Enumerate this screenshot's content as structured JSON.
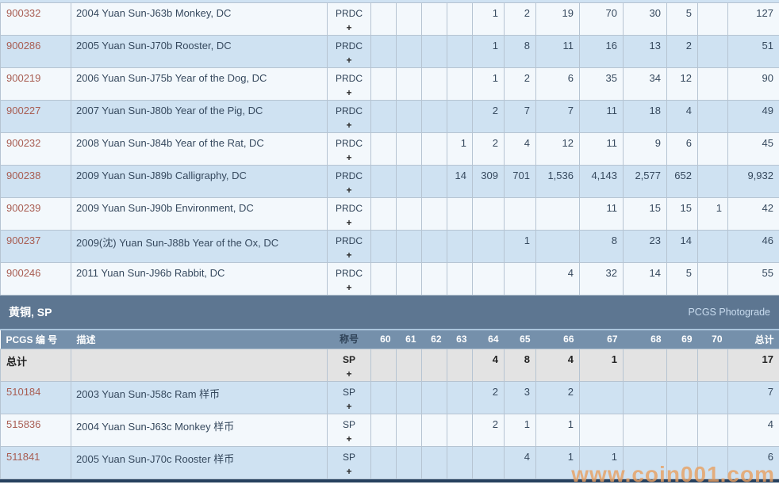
{
  "grade_labels": [
    "60",
    "61",
    "62",
    "63",
    "64",
    "65",
    "66",
    "67",
    "68",
    "69",
    "70"
  ],
  "colors": {
    "id_link": "#a85d52",
    "section_header_bg": "#5d7691",
    "column_header_bg": "#7590ab",
    "row_blue": "#cfe2f2",
    "row_white": "#f3f8fc",
    "total_row_bg": "#e3e3e3",
    "watermark_orange": "#e9a061",
    "photograde_link": "#c9dcef"
  },
  "table_prdc": {
    "rows": [
      {
        "id": "900332",
        "desc": "2004 Yuan Sun-J63b Monkey, DC",
        "designation": "PRDC",
        "plus": "+",
        "grades": [
          "",
          "",
          "",
          "",
          "1",
          "2",
          "19",
          "70",
          "30",
          "5",
          ""
        ],
        "total": "127"
      },
      {
        "id": "900286",
        "desc": "2005 Yuan Sun-J70b Rooster, DC",
        "designation": "PRDC",
        "plus": "+",
        "grades": [
          "",
          "",
          "",
          "",
          "1",
          "8",
          "11",
          "16",
          "13",
          "2",
          ""
        ],
        "total": "51"
      },
      {
        "id": "900219",
        "desc": "2006 Yuan Sun-J75b Year of the Dog, DC",
        "designation": "PRDC",
        "plus": "+",
        "grades": [
          "",
          "",
          "",
          "",
          "1",
          "2",
          "6",
          "35",
          "34",
          "12",
          ""
        ],
        "total": "90"
      },
      {
        "id": "900227",
        "desc": "2007 Yuan Sun-J80b Year of the Pig, DC",
        "designation": "PRDC",
        "plus": "+",
        "grades": [
          "",
          "",
          "",
          "",
          "2",
          "7",
          "7",
          "11",
          "18",
          "4",
          ""
        ],
        "total": "49"
      },
      {
        "id": "900232",
        "desc": "2008 Yuan Sun-J84b Year of the Rat, DC",
        "designation": "PRDC",
        "plus": "+",
        "grades": [
          "",
          "",
          "",
          "1",
          "2",
          "4",
          "12",
          "11",
          "9",
          "6",
          ""
        ],
        "total": "45"
      },
      {
        "id": "900238",
        "desc": "2009 Yuan Sun-J89b Calligraphy, DC",
        "designation": "PRDC",
        "plus": "+",
        "grades": [
          "",
          "",
          "",
          "14",
          "309",
          "701",
          "1,536",
          "4,143",
          "2,577",
          "652",
          ""
        ],
        "total": "9,932"
      },
      {
        "id": "900239",
        "desc": "2009 Yuan Sun-J90b Environment, DC",
        "designation": "PRDC",
        "plus": "+",
        "grades": [
          "",
          "",
          "",
          "",
          "",
          "",
          "",
          "11",
          "15",
          "15",
          "1"
        ],
        "total": "42"
      },
      {
        "id": "900237",
        "desc": "2009(沈) Yuan Sun-J88b Year of the Ox, DC",
        "designation": "PRDC",
        "plus": "+",
        "grades": [
          "",
          "",
          "",
          "",
          "",
          "1",
          "",
          "8",
          "23",
          "14",
          ""
        ],
        "total": "46"
      },
      {
        "id": "900246",
        "desc": "2011 Yuan Sun-J96b Rabbit, DC",
        "designation": "PRDC",
        "plus": "+",
        "grades": [
          "",
          "",
          "",
          "",
          "",
          "",
          "4",
          "32",
          "14",
          "5",
          ""
        ],
        "total": "55"
      }
    ]
  },
  "section_sp": {
    "title": "黄铜, SP",
    "photograde_label": "PCGS Photograde"
  },
  "table_sp": {
    "header": {
      "id_label": "PCGS 编 号",
      "desc_label": "描述",
      "designation_label": "称号",
      "total_label": "总计"
    },
    "total_row": {
      "label": "总计",
      "desc": "",
      "designation": "SP",
      "plus": "+",
      "grades": [
        "",
        "",
        "",
        "",
        "4",
        "8",
        "4",
        "1",
        "",
        "",
        ""
      ],
      "total": "17"
    },
    "rows": [
      {
        "id": "510184",
        "desc": "2003 Yuan Sun-J58c Ram 样币",
        "designation": "SP",
        "plus": "+",
        "grades": [
          "",
          "",
          "",
          "",
          "2",
          "3",
          "2",
          "",
          "",
          "",
          ""
        ],
        "total": "7"
      },
      {
        "id": "515836",
        "desc": "2004 Yuan Sun-J63c Monkey 样币",
        "designation": "SP",
        "plus": "+",
        "grades": [
          "",
          "",
          "",
          "",
          "2",
          "1",
          "1",
          "",
          "",
          "",
          ""
        ],
        "total": "4"
      },
      {
        "id": "511841",
        "desc": "2005 Yuan Sun-J70c Rooster 样币",
        "designation": "SP",
        "plus": "+",
        "grades": [
          "",
          "",
          "",
          "",
          "",
          "4",
          "1",
          "1",
          "",
          "",
          ""
        ],
        "total": "6"
      }
    ]
  },
  "watermark": "www.coin001.com"
}
